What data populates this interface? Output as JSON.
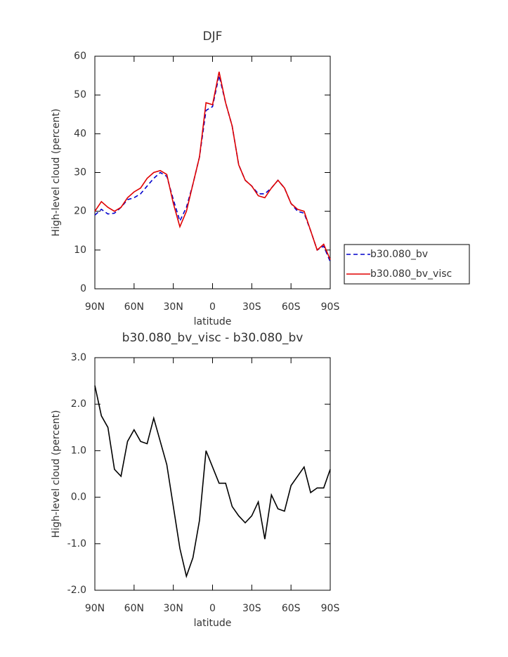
{
  "chart_data": [
    {
      "type": "line",
      "title": "DJF",
      "x_label": "latitude",
      "y_label": "High-level cloud (percent)",
      "x": [
        90,
        85,
        80,
        75,
        70,
        65,
        60,
        55,
        50,
        45,
        40,
        35,
        30,
        25,
        20,
        15,
        10,
        5,
        0,
        -5,
        -10,
        -15,
        -20,
        -25,
        -30,
        -35,
        -40,
        -45,
        -50,
        -55,
        -60,
        -65,
        -70,
        -75,
        -80,
        -85,
        -90
      ],
      "series": [
        {
          "name": "b30.080_bv",
          "color": "#0000cc",
          "linestyle": "dashed",
          "values": [
            19,
            20.5,
            19.3,
            19.5,
            21,
            23,
            23.5,
            24.5,
            26.5,
            28.5,
            30,
            29,
            23,
            17.5,
            21,
            27,
            34,
            46,
            47,
            55,
            48,
            42,
            32,
            28,
            26.5,
            24.5,
            24.5,
            26,
            28,
            26,
            22,
            20,
            19.5,
            15,
            10,
            11,
            7
          ]
        },
        {
          "name": "b30.080_bv_visc",
          "color": "#e00000",
          "linestyle": "solid",
          "values": [
            20,
            22.5,
            21,
            20,
            21,
            23.5,
            25,
            26,
            28.5,
            30,
            30.5,
            29.5,
            22,
            16,
            20,
            27,
            34,
            48,
            47.5,
            56,
            48,
            42,
            32,
            28,
            26.5,
            24,
            23.5,
            26,
            28,
            26,
            22,
            20.5,
            20,
            15,
            10,
            11.5,
            7.5
          ]
        }
      ],
      "xlim": [
        90,
        -90
      ],
      "xticks": [
        {
          "value": 90,
          "label": "90N"
        },
        {
          "value": 60,
          "label": "60N"
        },
        {
          "value": 30,
          "label": "30N"
        },
        0,
        {
          "value": -30,
          "label": "30S"
        },
        {
          "value": -60,
          "label": "60S"
        },
        {
          "value": -90,
          "label": "90S"
        }
      ],
      "ylim": [
        0,
        60
      ],
      "yticks": [
        0,
        10,
        20,
        30,
        40,
        50,
        60
      ],
      "legend": "right"
    },
    {
      "type": "line",
      "title": "b30.080_bv_visc - b30.080_bv",
      "x_label": "latitude",
      "y_label": "High-level cloud (percent)",
      "x": [
        90,
        85,
        80,
        75,
        70,
        65,
        60,
        55,
        50,
        45,
        40,
        35,
        30,
        25,
        20,
        15,
        10,
        5,
        0,
        -5,
        -10,
        -15,
        -20,
        -25,
        -30,
        -35,
        -40,
        -45,
        -50,
        -55,
        -60,
        -65,
        -70,
        -75,
        -80,
        -85,
        -90
      ],
      "series": [
        {
          "name": "b30.080_bv_visc - b30.080_bv",
          "color": "#000000",
          "linestyle": "solid",
          "values": [
            2.4,
            1.75,
            1.5,
            0.6,
            0.45,
            1.2,
            1.45,
            1.2,
            1.15,
            1.7,
            1.2,
            0.7,
            -0.2,
            -1.1,
            -1.7,
            -1.3,
            -0.5,
            1.0,
            0.65,
            0.3,
            0.3,
            -0.2,
            -0.4,
            -0.55,
            -0.4,
            -0.1,
            -0.9,
            0.05,
            -0.25,
            -0.3,
            0.25,
            0.45,
            0.65,
            0.1,
            0.2,
            0.2,
            0.6
          ]
        }
      ],
      "xlim": [
        90,
        -90
      ],
      "xticks": [
        {
          "value": 90,
          "label": "90N"
        },
        {
          "value": 60,
          "label": "60N"
        },
        {
          "value": 30,
          "label": "30N"
        },
        0,
        {
          "value": -30,
          "label": "30S"
        },
        {
          "value": -60,
          "label": "60S"
        },
        {
          "value": -90,
          "label": "90S"
        }
      ],
      "ylim": [
        -2,
        3
      ],
      "yticks": [
        {
          "value": -2,
          "label": "-2.0"
        },
        {
          "value": -1,
          "label": "-1.0"
        },
        {
          "value": 0,
          "label": "0.0"
        },
        {
          "value": 1,
          "label": "1.0"
        },
        {
          "value": 2,
          "label": "2.0"
        },
        {
          "value": 3,
          "label": "3.0"
        }
      ]
    }
  ]
}
